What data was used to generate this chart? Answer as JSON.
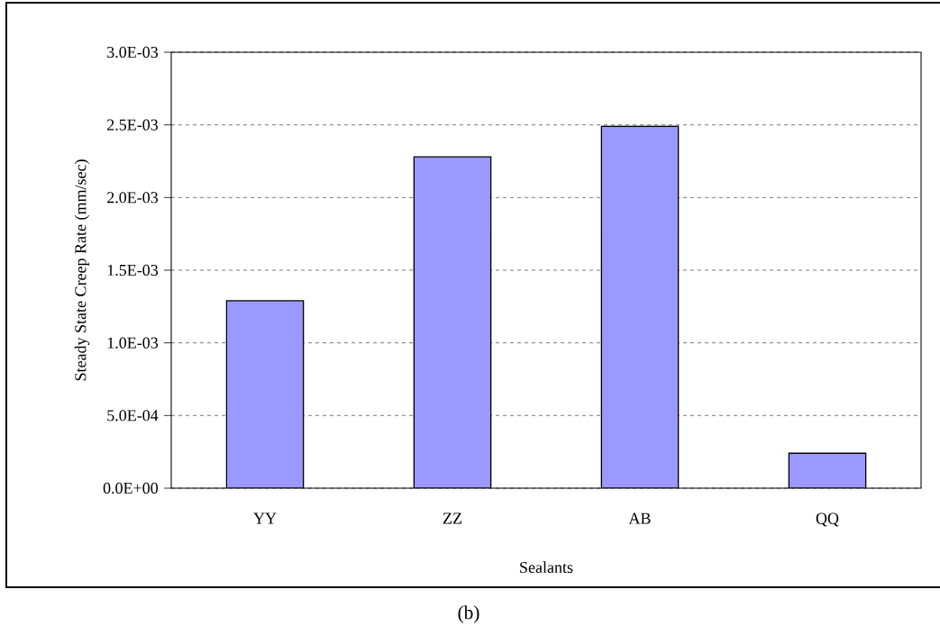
{
  "chart_data": {
    "type": "bar",
    "xlabel": "Sealants",
    "ylabel": "Steady State Creep Rate (mm/sec)",
    "categories": [
      "YY",
      "ZZ",
      "AB",
      "QQ"
    ],
    "values": [
      0.00129,
      0.00228,
      0.00249,
      0.00024
    ],
    "color": "#9999ff",
    "ylim": [
      0,
      0.003
    ],
    "yticks": [
      {
        "value": 0,
        "label": "0.0E+00"
      },
      {
        "value": 0.0005,
        "label": "5.0E-04"
      },
      {
        "value": 0.001,
        "label": "1.0E-03"
      },
      {
        "value": 0.0015,
        "label": "1.5E-03"
      },
      {
        "value": 0.002,
        "label": "2.0E-03"
      },
      {
        "value": 0.0025,
        "label": "2.5E-03"
      },
      {
        "value": 0.003,
        "label": "3.0E-03"
      }
    ],
    "grid": "y",
    "annotations": [
      "(b)"
    ]
  }
}
